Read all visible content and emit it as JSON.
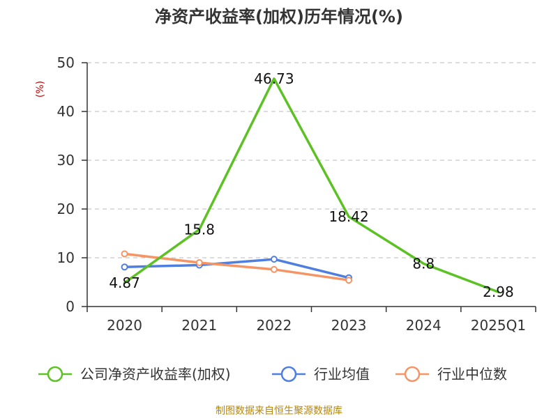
{
  "chart_data": {
    "type": "line",
    "title": "净资产收益率(加权)历年情况(%)",
    "ylabel": "(%)",
    "xlabel": "",
    "ylim": [
      0,
      50
    ],
    "yticks": [
      0,
      10,
      20,
      30,
      40,
      50
    ],
    "grid": true,
    "categories": [
      "2020",
      "2021",
      "2022",
      "2023",
      "2024",
      "2025Q1"
    ],
    "series": [
      {
        "name": "公司净资产收益率(加权)",
        "color": "#5cc223",
        "values": [
          4.87,
          15.8,
          46.73,
          18.42,
          8.8,
          2.98
        ],
        "labels": [
          "4.87",
          "15.8",
          "46.73",
          "18.42",
          "8.8",
          "2.98"
        ]
      },
      {
        "name": "行业均值",
        "color": "#4f7fde",
        "values": [
          8.1,
          8.5,
          9.7,
          5.9,
          null,
          null
        ]
      },
      {
        "name": "行业中位数",
        "color": "#f59566",
        "values": [
          10.8,
          9.0,
          7.6,
          5.4,
          null,
          null
        ]
      }
    ],
    "legend": "bottom",
    "source": "制图数据来自恒生聚源数据库"
  }
}
